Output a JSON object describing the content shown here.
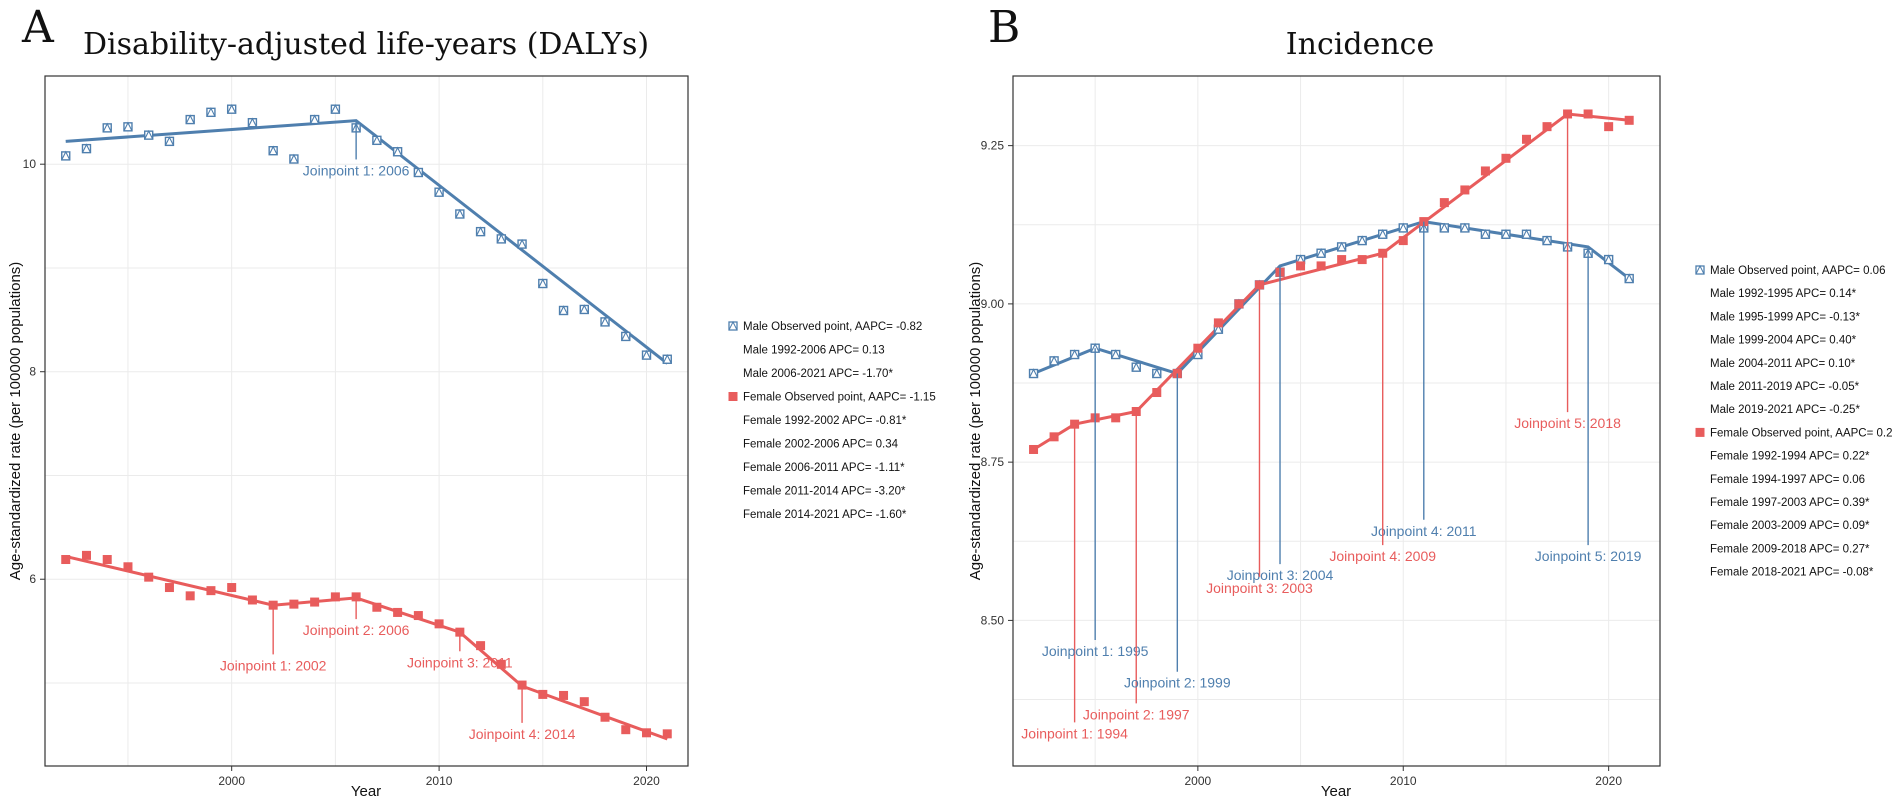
{
  "colors": {
    "male": "#4f7fae",
    "female": "#e85c5c",
    "grid": "#ebebeb"
  },
  "chart_data": [
    {
      "panel": "A",
      "type": "line",
      "title": "Disability-adjusted life-years (DALYs)",
      "xlabel": "Year",
      "ylabel": "Age-standardized rate (per 100000 populations)",
      "xlim": [
        1991,
        2022
      ],
      "ylim": [
        4.2,
        10.85
      ],
      "xticks": [
        2000,
        2010,
        2020
      ],
      "yticks": [
        6,
        8,
        10
      ],
      "legend_position": "right",
      "series": [
        {
          "name": "Male",
          "color_key": "male",
          "marker": "box-x",
          "years": [
            1992,
            1993,
            1994,
            1995,
            1996,
            1997,
            1998,
            1999,
            2000,
            2001,
            2002,
            2003,
            2004,
            2005,
            2006,
            2007,
            2008,
            2009,
            2010,
            2011,
            2012,
            2013,
            2014,
            2015,
            2016,
            2017,
            2018,
            2019,
            2020,
            2021
          ],
          "observed": [
            10.08,
            10.15,
            10.35,
            10.36,
            10.28,
            10.22,
            10.43,
            10.5,
            10.53,
            10.4,
            10.13,
            10.05,
            10.43,
            10.53,
            10.35,
            10.23,
            10.12,
            9.92,
            9.73,
            9.52,
            9.35,
            9.28,
            9.23,
            8.85,
            8.59,
            8.6,
            8.48,
            8.34,
            8.16,
            8.12
          ],
          "fit": [
            [
              1992,
              10.22
            ],
            [
              2006,
              10.42
            ],
            [
              2021,
              8.08
            ]
          ]
        },
        {
          "name": "Female",
          "color_key": "female",
          "marker": "square",
          "years": [
            1992,
            1993,
            1994,
            1995,
            1996,
            1997,
            1998,
            1999,
            2000,
            2001,
            2002,
            2003,
            2004,
            2005,
            2006,
            2007,
            2008,
            2009,
            2010,
            2011,
            2012,
            2013,
            2014,
            2015,
            2016,
            2017,
            2018,
            2019,
            2020,
            2021
          ],
          "observed": [
            6.19,
            6.23,
            6.19,
            6.12,
            6.02,
            5.92,
            5.84,
            5.89,
            5.92,
            5.8,
            5.75,
            5.76,
            5.78,
            5.83,
            5.83,
            5.73,
            5.68,
            5.65,
            5.57,
            5.49,
            5.36,
            5.18,
            4.98,
            4.89,
            4.88,
            4.82,
            4.67,
            4.55,
            4.52,
            4.51
          ],
          "fit": [
            [
              1992,
              6.22
            ],
            [
              2002,
              5.75
            ],
            [
              2006,
              5.82
            ],
            [
              2011,
              5.49
            ],
            [
              2014,
              4.97
            ],
            [
              2021,
              4.46
            ]
          ]
        }
      ],
      "joinpoints": [
        {
          "series": "Male",
          "label": "Joinpoint 1: 2006",
          "year": 2006,
          "y_point": 10.42,
          "y_label": 9.93
        },
        {
          "series": "Female",
          "label": "Joinpoint 1: 2002",
          "year": 2002,
          "y_point": 5.75,
          "y_label": 5.16
        },
        {
          "series": "Female",
          "label": "Joinpoint 2: 2006",
          "year": 2006,
          "y_point": 5.82,
          "y_label": 5.5
        },
        {
          "series": "Female",
          "label": "Joinpoint 3: 2011",
          "year": 2011,
          "y_point": 5.49,
          "y_label": 5.19
        },
        {
          "series": "Female",
          "label": "Joinpoint 4: 2014",
          "year": 2014,
          "y_point": 4.97,
          "y_label": 4.5
        }
      ],
      "legend": [
        {
          "text": "Male Observed point, AAPC= -0.82",
          "marker": "box-x",
          "color_key": "male"
        },
        {
          "text": "Male 1992-2006 APC= 0.13",
          "marker": "none"
        },
        {
          "text": "Male 2006-2021 APC= -1.70*",
          "marker": "none"
        },
        {
          "text": "Female Observed point, AAPC= -1.15",
          "marker": "square",
          "color_key": "female"
        },
        {
          "text": "Female 1992-2002 APC= -0.81*",
          "marker": "none"
        },
        {
          "text": "Female 2002-2006 APC= 0.34",
          "marker": "none"
        },
        {
          "text": "Female 2006-2011 APC= -1.11*",
          "marker": "none"
        },
        {
          "text": "Female 2011-2014 APC= -3.20*",
          "marker": "none"
        },
        {
          "text": "Female 2014-2021 APC= -1.60*",
          "marker": "none"
        }
      ]
    },
    {
      "panel": "B",
      "type": "line",
      "title": "Incidence",
      "xlabel": "Year",
      "ylabel": "Age-standardized rate (per 100000 populations)",
      "xlim": [
        1991,
        2022.5
      ],
      "ylim": [
        8.27,
        9.36
      ],
      "xticks": [
        2000,
        2010,
        2020
      ],
      "yticks": [
        8.5,
        8.75,
        9.0,
        9.25
      ],
      "ytick_labels": [
        "8.50",
        "8.75",
        "9.00",
        "9.25"
      ],
      "legend_position": "right",
      "series": [
        {
          "name": "Male",
          "color_key": "male",
          "marker": "box-x",
          "years": [
            1992,
            1993,
            1994,
            1995,
            1996,
            1997,
            1998,
            1999,
            2000,
            2001,
            2002,
            2003,
            2004,
            2005,
            2006,
            2007,
            2008,
            2009,
            2010,
            2011,
            2012,
            2013,
            2014,
            2015,
            2016,
            2017,
            2018,
            2019,
            2020,
            2021
          ],
          "observed": [
            8.89,
            8.91,
            8.92,
            8.93,
            8.92,
            8.9,
            8.89,
            8.89,
            8.92,
            8.96,
            9.0,
            9.03,
            9.05,
            9.07,
            9.08,
            9.09,
            9.1,
            9.11,
            9.12,
            9.12,
            9.12,
            9.12,
            9.11,
            9.11,
            9.11,
            9.1,
            9.09,
            9.08,
            9.07,
            9.04
          ],
          "fit": [
            [
              1992,
              8.89
            ],
            [
              1995,
              8.93
            ],
            [
              1999,
              8.89
            ],
            [
              2004,
              9.06
            ],
            [
              2011,
              9.13
            ],
            [
              2019,
              9.09
            ],
            [
              2021,
              9.04
            ]
          ]
        },
        {
          "name": "Female",
          "color_key": "female",
          "marker": "square",
          "years": [
            1992,
            1993,
            1994,
            1995,
            1996,
            1997,
            1998,
            1999,
            2000,
            2001,
            2002,
            2003,
            2004,
            2005,
            2006,
            2007,
            2008,
            2009,
            2010,
            2011,
            2012,
            2013,
            2014,
            2015,
            2016,
            2017,
            2018,
            2019,
            2020,
            2021
          ],
          "observed": [
            8.77,
            8.79,
            8.81,
            8.82,
            8.82,
            8.83,
            8.86,
            8.89,
            8.93,
            8.97,
            9.0,
            9.03,
            9.05,
            9.06,
            9.06,
            9.07,
            9.07,
            9.08,
            9.1,
            9.13,
            9.16,
            9.18,
            9.21,
            9.23,
            9.26,
            9.28,
            9.3,
            9.3,
            9.28,
            9.29
          ],
          "fit": [
            [
              1992,
              8.77
            ],
            [
              1994,
              8.81
            ],
            [
              1997,
              8.83
            ],
            [
              2003,
              9.03
            ],
            [
              2009,
              9.08
            ],
            [
              2018,
              9.3
            ],
            [
              2021,
              9.29
            ]
          ]
        }
      ],
      "joinpoints": [
        {
          "series": "Female",
          "label": "Joinpoint 1: 1994",
          "year": 1994,
          "y_point": 8.81,
          "y_label": 8.32
        },
        {
          "series": "Male",
          "label": "Joinpoint 1: 1995",
          "year": 1995,
          "y_point": 8.93,
          "y_label": 8.45
        },
        {
          "series": "Female",
          "label": "Joinpoint 2: 1997",
          "year": 1997,
          "y_point": 8.83,
          "y_label": 8.35
        },
        {
          "series": "Male",
          "label": "Joinpoint 2: 1999",
          "year": 1999,
          "y_point": 8.89,
          "y_label": 8.4
        },
        {
          "series": "Male",
          "label": "Joinpoint 3: 2004",
          "year": 2004,
          "y_point": 9.06,
          "y_label": 8.57
        },
        {
          "series": "Female",
          "label": "Joinpoint 3: 2003",
          "year": 2003,
          "y_point": 9.03,
          "y_label": 8.55
        },
        {
          "series": "Male",
          "label": "Joinpoint 4: 2011",
          "year": 2011,
          "y_point": 9.13,
          "y_label": 8.64
        },
        {
          "series": "Female",
          "label": "Joinpoint 4: 2009",
          "year": 2009,
          "y_point": 9.08,
          "y_label": 8.6
        },
        {
          "series": "Female",
          "label": "Joinpoint 5: 2018",
          "year": 2018,
          "y_point": 9.3,
          "y_label": 8.81
        },
        {
          "series": "Male",
          "label": "Joinpoint 5: 2019",
          "year": 2019,
          "y_point": 9.09,
          "y_label": 8.6
        }
      ],
      "legend": [
        {
          "text": "Male Observed point, AAPC= 0.06",
          "marker": "box-x",
          "color_key": "male"
        },
        {
          "text": "Male 1992-1995 APC= 0.14*",
          "marker": "none"
        },
        {
          "text": "Male 1995-1999 APC= -0.13*",
          "marker": "none"
        },
        {
          "text": "Male 1999-2004 APC= 0.40*",
          "marker": "none"
        },
        {
          "text": "Male 2004-2011 APC= 0.10*",
          "marker": "none"
        },
        {
          "text": "Male 2011-2019 APC= -0.05*",
          "marker": "none"
        },
        {
          "text": "Male 2019-2021 APC= -0.25*",
          "marker": "none"
        },
        {
          "text": "Female Observed point, AAPC= 0.2",
          "marker": "square",
          "color_key": "female"
        },
        {
          "text": "Female 1992-1994 APC= 0.22*",
          "marker": "none"
        },
        {
          "text": "Female 1994-1997 APC= 0.06",
          "marker": "none"
        },
        {
          "text": "Female 1997-2003 APC= 0.39*",
          "marker": "none"
        },
        {
          "text": "Female 2003-2009 APC= 0.09*",
          "marker": "none"
        },
        {
          "text": "Female 2009-2018 APC= 0.27*",
          "marker": "none"
        },
        {
          "text": "Female 2018-2021 APC= -0.08*",
          "marker": "none"
        }
      ]
    }
  ]
}
